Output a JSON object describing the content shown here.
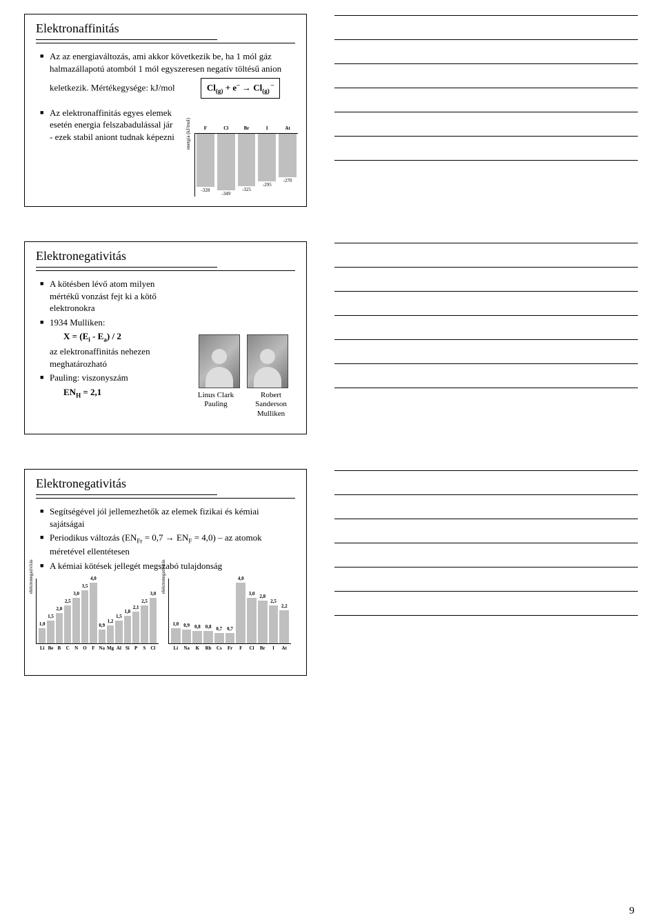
{
  "pageNumber": "9",
  "notesLinesPerRow": 7,
  "slide1": {
    "title": "Elektronaffinitás",
    "b1": "Az az energiaváltozás, ami akkor következik be, ha 1 mól gáz halmazállapotú atomból 1 mól egyszeresen negatív töltésű anion keletkezik. Mértékegysége: kJ/mol",
    "formula_lead": "Cl",
    "formula_sub1": "(g)",
    "formula_plus": " + e",
    "formula_sup1": "–",
    "formula_arrow": " → Cl",
    "formula_sub2": "(g)",
    "formula_sup2": "–",
    "b2": "Az elektronaffinitás egyes elemek esetén energia felszabadulással jár - ezek stabil aniont tudnak képezni",
    "chart": {
      "ylabel": "energia (kJ/mol)",
      "cats": [
        "F",
        "Cl",
        "Br",
        "I",
        "At"
      ],
      "vals": [
        "-328",
        "-349",
        "-325",
        "-295",
        "-270"
      ],
      "heights": [
        77,
        82,
        76,
        69,
        63
      ]
    }
  },
  "slide2": {
    "title": "Elektronegativitás",
    "b1": "A kötésben lévő atom milyen mértékű vonzást fejt ki a kötő elektronokra",
    "b2": "1934 Mulliken:",
    "formula": "X = (E",
    "formula_sub_i": "i",
    "formula_mid": " - E",
    "formula_sub_a": "a",
    "formula_end": ") / 2",
    "sub_text": "az elektronaffinitás nehezen meghatározható",
    "b3": "Pauling: viszonyszám",
    "en_label": "EN",
    "en_sub": "H",
    "en_val": " = 2,1",
    "cap1": "Linus Clark Pauling",
    "cap2": "Robert Sanderson Mulliken"
  },
  "slide3": {
    "title": "Elektronegativitás",
    "b1": "Segítségével jól jellemezhetők az elemek fizikai és kémiai sajátságai",
    "b2_pre": "Periodikus változás (EN",
    "b2_sub1": "Fr",
    "b2_mid": " = 0,7 → EN",
    "b2_sub2": "F",
    "b2_end": " = 4,0) – az atomok méretével ellentétesen",
    "b3": "A kémiai kötések jellegét megszabó tulajdonság",
    "chartA": {
      "ylabel": "elektronegativitás",
      "cats": [
        "Li",
        "Be",
        "B",
        "C",
        "N",
        "O",
        "F",
        "Na",
        "Mg",
        "Al",
        "Si",
        "P",
        "S",
        "Cl"
      ],
      "vals": [
        "1,0",
        "1,5",
        "2,0",
        "2,5",
        "3,0",
        "3,5",
        "4,0",
        "0,9",
        "1,2",
        "1,5",
        "1,8",
        "2,1",
        "2,5",
        "3,0"
      ],
      "heights": [
        22,
        33,
        44,
        55,
        66,
        77,
        88,
        20,
        26,
        33,
        40,
        46,
        55,
        66
      ]
    },
    "chartB": {
      "ylabel": "elektronegativitás",
      "cats": [
        "Li",
        "Na",
        "K",
        "Rb",
        "Cs",
        "Fr",
        "F",
        "Cl",
        "Br",
        "I",
        "At"
      ],
      "vals": [
        "1,0",
        "0,9",
        "0,8",
        "0,8",
        "0,7",
        "0,7",
        "4,0",
        "3,0",
        "2,8",
        "2,5",
        "2,2"
      ],
      "heights": [
        22,
        20,
        18,
        18,
        15,
        15,
        88,
        66,
        62,
        55,
        48
      ]
    }
  }
}
